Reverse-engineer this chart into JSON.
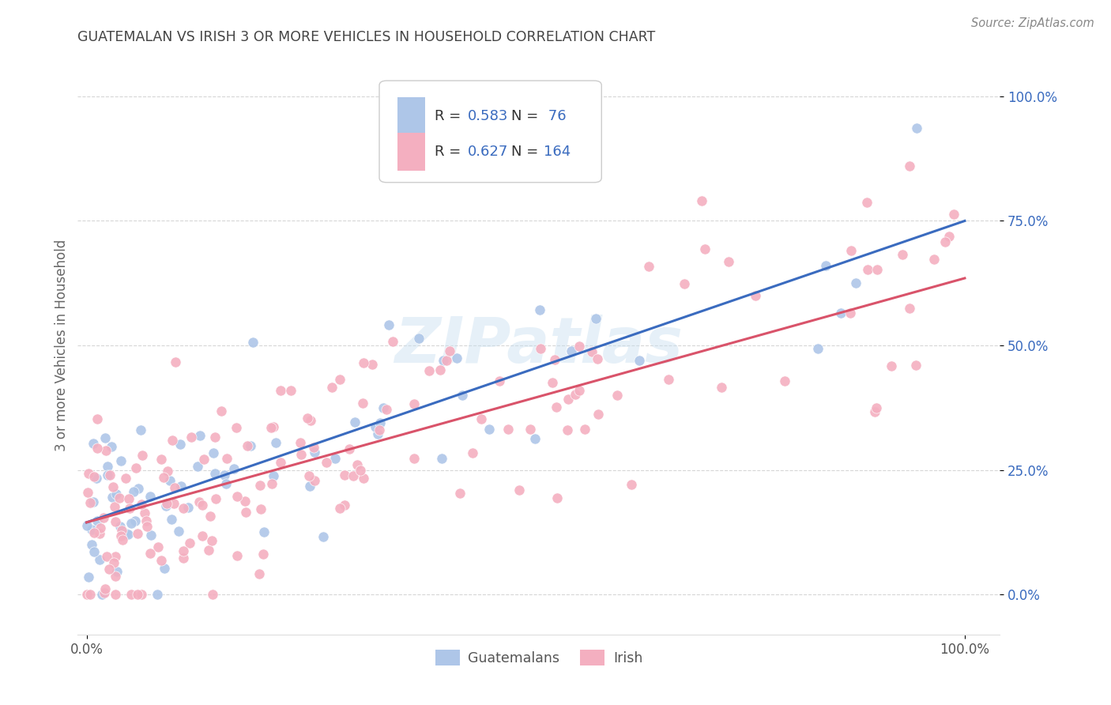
{
  "title": "GUATEMALAN VS IRISH 3 OR MORE VEHICLES IN HOUSEHOLD CORRELATION CHART",
  "source": "Source: ZipAtlas.com",
  "ylabel": "3 or more Vehicles in Household",
  "watermark": "ZIPatlas",
  "guatemalan_R": 0.583,
  "guatemalan_N": 76,
  "irish_R": 0.627,
  "irish_N": 164,
  "guatemalan_color": "#aec6e8",
  "irish_color": "#f4afc0",
  "guatemalan_line_color": "#3a6bbf",
  "irish_line_color": "#d9536a",
  "legend_value_color": "#3a6bbf",
  "legend_label_color": "#333333",
  "title_color": "#444444",
  "source_color": "#888888",
  "background_color": "#ffffff",
  "grid_color": "#cccccc",
  "ytick_color": "#3a6bbf",
  "ytick_values": [
    0.0,
    0.25,
    0.5,
    0.75,
    1.0
  ],
  "ytick_labels": [
    "0.0%",
    "25.0%",
    "50.0%",
    "75.0%",
    "100.0%"
  ],
  "xtick_labels": [
    "0.0%",
    "100.0%"
  ],
  "guat_line_x0": 0.0,
  "guat_line_y0": 0.145,
  "guat_line_x1": 1.0,
  "guat_line_y1": 0.75,
  "irish_line_x0": 0.0,
  "irish_line_y0": 0.145,
  "irish_line_x1": 1.0,
  "irish_line_y1": 0.635,
  "xlim": [
    -0.01,
    1.04
  ],
  "ylim": [
    -0.08,
    1.08
  ]
}
